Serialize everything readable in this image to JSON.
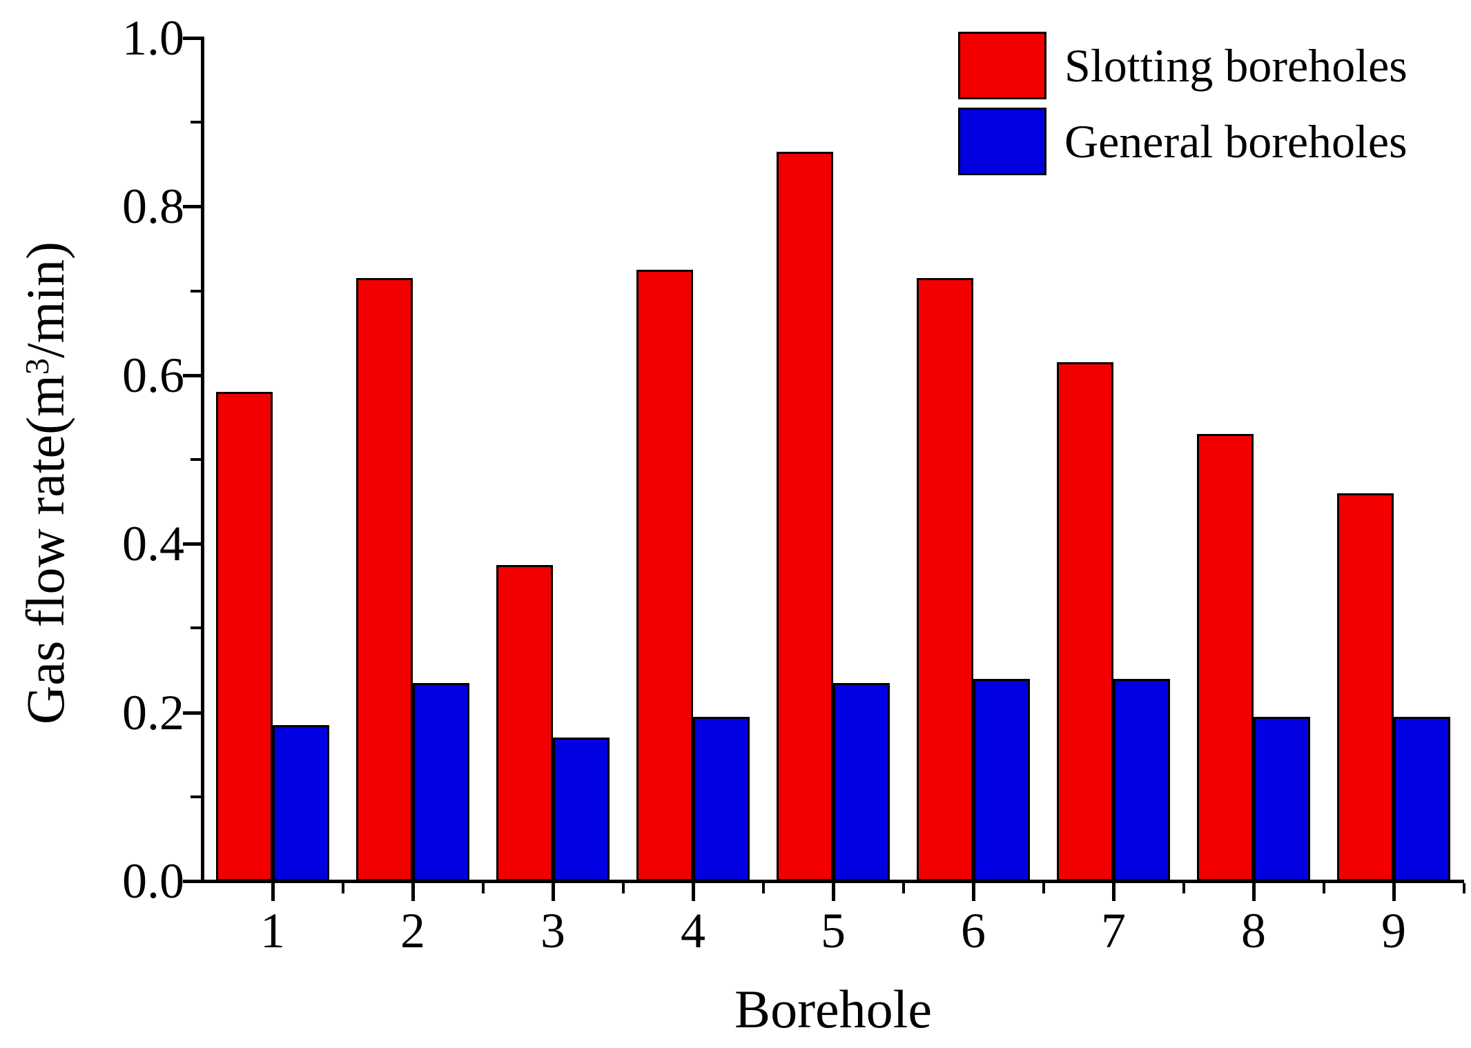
{
  "figure": {
    "background": "#ffffff"
  },
  "chart_data": {
    "type": "bar",
    "title": "",
    "xlabel": "Borehole",
    "ylabel": "Gas flow rate(m³/min)",
    "ylabel_parts": {
      "pre": "Gas flow rate(m",
      "sup": "3",
      "post": "/min)"
    },
    "categories": [
      "1",
      "2",
      "3",
      "4",
      "5",
      "6",
      "7",
      "8",
      "9"
    ],
    "series": [
      {
        "name": "Slotting boreholes",
        "color": "#f20000",
        "values": [
          0.58,
          0.715,
          0.375,
          0.725,
          0.865,
          0.715,
          0.615,
          0.53,
          0.46
        ]
      },
      {
        "name": "General boreholes",
        "color": "#0000e0",
        "values": [
          0.185,
          0.235,
          0.17,
          0.195,
          0.235,
          0.24,
          0.24,
          0.195,
          0.195
        ]
      }
    ],
    "ylim": [
      0.0,
      1.0
    ],
    "yticks": [
      "0.0",
      "0.2",
      "0.4",
      "0.6",
      "0.8",
      "1.0"
    ],
    "ytick_values": [
      0.0,
      0.2,
      0.4,
      0.6,
      0.8,
      1.0
    ],
    "yminor_values": [
      0.1,
      0.3,
      0.5,
      0.7,
      0.9
    ],
    "grid": false,
    "legend_position": "top-right",
    "axis_color": "#000000",
    "bar_edge_color": "#000000"
  }
}
